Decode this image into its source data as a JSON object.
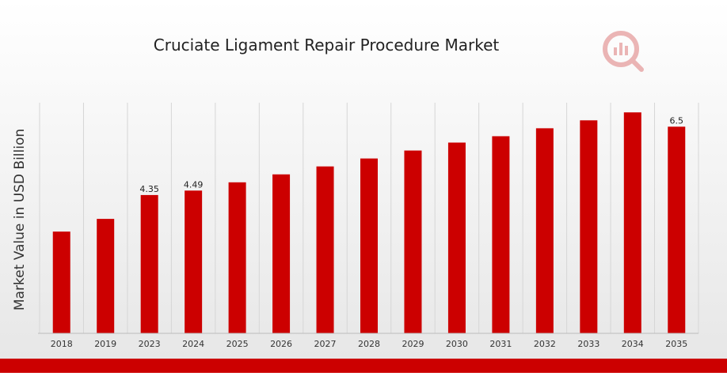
{
  "chart_data": {
    "type": "bar",
    "title": "Cruciate Ligament Repair Procedure Market",
    "xlabel": "",
    "ylabel": "Market Value in USD Billion",
    "categories": [
      "2018",
      "2019",
      "2023",
      "2024",
      "2025",
      "2026",
      "2027",
      "2028",
      "2029",
      "2030",
      "2031",
      "2032",
      "2033",
      "2034",
      "2035"
    ],
    "values": [
      3.2,
      3.6,
      4.35,
      4.49,
      4.75,
      5.0,
      5.25,
      5.5,
      5.75,
      6.0,
      6.2,
      6.45,
      6.7,
      6.95,
      6.5
    ],
    "data_labels": [
      null,
      null,
      "4.35",
      "4.49",
      null,
      null,
      null,
      null,
      null,
      null,
      null,
      null,
      null,
      null,
      "6.5"
    ],
    "ylim": [
      0,
      8
    ],
    "grid": "vertical",
    "legend": "none",
    "colors": {
      "bar": "#cc0000",
      "background_top": "#ffffff",
      "background_bottom": "#e8e8e8",
      "footer_bar": "#cc0000"
    },
    "logo_icon": "market-research-logo"
  }
}
